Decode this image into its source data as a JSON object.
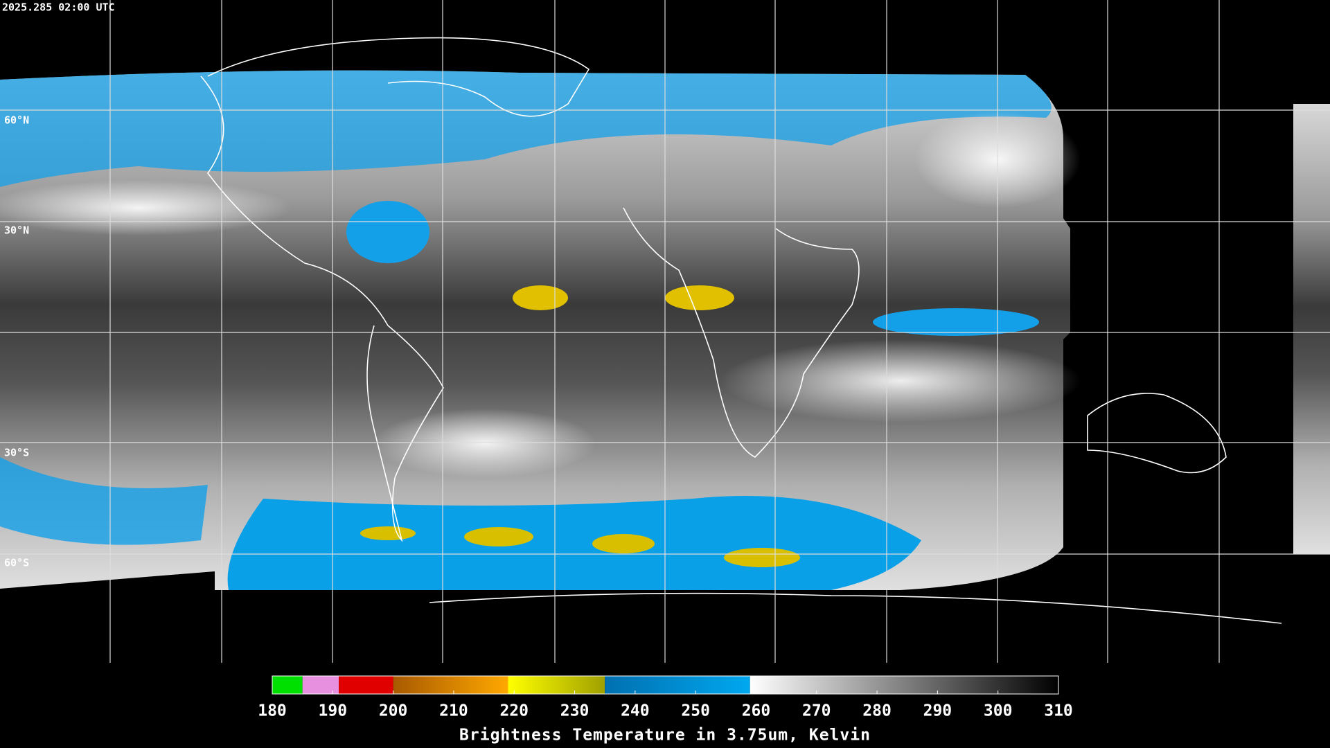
{
  "header": {
    "timestamp": "2025.285 02:00 UTC"
  },
  "map": {
    "lat_labels": [
      "60°N",
      "30°N",
      "30°S",
      "60°S"
    ]
  },
  "colorbar": {
    "title": "Brightness Temperature in 3.75um, Kelvin",
    "range": [
      180,
      310
    ],
    "ticks": [
      180,
      190,
      200,
      210,
      220,
      230,
      240,
      250,
      260,
      270,
      280,
      290,
      300,
      310
    ],
    "segments": [
      {
        "from": 180,
        "to": 185,
        "colors": [
          "#00e000",
          "#00e000"
        ]
      },
      {
        "from": 185,
        "to": 191,
        "colors": [
          "#e890e0",
          "#e890e0"
        ]
      },
      {
        "from": 191,
        "to": 200,
        "colors": [
          "#e00000",
          "#e00000"
        ]
      },
      {
        "from": 200,
        "to": 219,
        "colors": [
          "#a85a00",
          "#ffa800"
        ]
      },
      {
        "from": 219,
        "to": 235,
        "colors": [
          "#ffff00",
          "#a0a000"
        ]
      },
      {
        "from": 235,
        "to": 259,
        "colors": [
          "#0070b0",
          "#00a8f0"
        ]
      },
      {
        "from": 259,
        "to": 310,
        "colors": [
          "#ffffff",
          "#000000"
        ]
      }
    ]
  }
}
